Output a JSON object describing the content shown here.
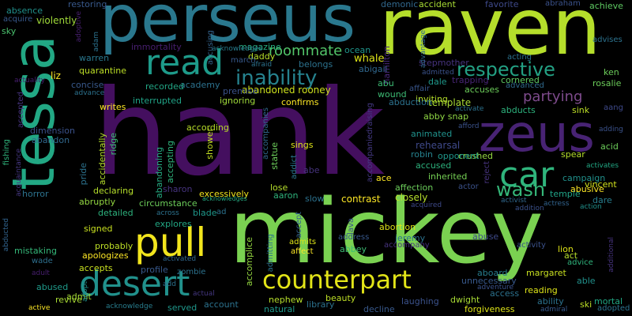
{
  "words": [
    {
      "text": "hank",
      "color": "#440f5f"
    },
    {
      "text": "mickey",
      "color": "#7ad151"
    },
    {
      "text": "perseus",
      "color": "#2a788e"
    },
    {
      "text": "raven",
      "color": "#b5de2b"
    },
    {
      "text": "tessa",
      "color": "#22a884"
    },
    {
      "text": "zeus",
      "color": "#482374"
    },
    {
      "text": "read",
      "color": "#1e9b8a"
    },
    {
      "text": "car",
      "color": "#2fb47c"
    },
    {
      "text": "pull",
      "color": "#f2e51d"
    },
    {
      "text": "desert",
      "color": "#21918c"
    },
    {
      "text": "counterpart",
      "color": "#e2e418"
    },
    {
      "text": "inability",
      "color": "#26828e"
    },
    {
      "text": "respective",
      "color": "#23a083"
    },
    {
      "text": "wash",
      "color": "#35b779"
    },
    {
      "text": "roommate",
      "color": "#52c569"
    },
    {
      "text": "partying",
      "color": "#7e4b8c"
    },
    {
      "text": "abandoned rooney",
      "color": "#cde11d"
    },
    {
      "text": "ignoring",
      "color": "#9fda3a"
    },
    {
      "text": "premise",
      "color": "#3b528b"
    },
    {
      "text": "confirms",
      "color": "#fde725"
    },
    {
      "text": "academy",
      "color": "#2c728e"
    },
    {
      "text": "according",
      "color": "#b8de29"
    },
    {
      "text": "accompanies",
      "color": "#31688e"
    },
    {
      "text": "accompaniedraising",
      "color": "#443983"
    },
    {
      "text": "template",
      "color": "#a8db34"
    },
    {
      "text": "inviting",
      "color": "#b5de2b"
    },
    {
      "text": "abby snap",
      "color": "#8fd744"
    },
    {
      "text": "animated",
      "color": "#20928c"
    },
    {
      "text": "rehearsal",
      "color": "#3e4989"
    },
    {
      "text": "robin",
      "color": "#26828e"
    },
    {
      "text": "accused",
      "color": "#2db27d"
    },
    {
      "text": "inherited",
      "color": "#75d054"
    },
    {
      "text": "crushed",
      "color": "#95d840"
    },
    {
      "text": "opponent",
      "color": "#1f988b"
    },
    {
      "text": "reject",
      "color": "#46337e"
    },
    {
      "text": "ace",
      "color": "#fde725"
    },
    {
      "text": "affection",
      "color": "#6ccd5a"
    },
    {
      "text": "actor",
      "color": "#3b528b"
    },
    {
      "text": "abe",
      "color": "#46337e"
    },
    {
      "text": "sings",
      "color": "#dde318"
    },
    {
      "text": "statue",
      "color": "#6ccd5a"
    },
    {
      "text": "addict",
      "color": "#2a788e"
    },
    {
      "text": "shower",
      "color": "#c2df23"
    },
    {
      "text": "accepting",
      "color": "#2fb47c"
    },
    {
      "text": "abandoning",
      "color": "#25ab82"
    },
    {
      "text": "accidentally",
      "color": "#b5de2b"
    },
    {
      "text": "ridge",
      "color": "#3dbc74"
    },
    {
      "text": "pride",
      "color": "#2c728e"
    },
    {
      "text": "writes",
      "color": "#fde725"
    },
    {
      "text": "interrupted",
      "color": "#20a386"
    },
    {
      "text": "recorded",
      "color": "#22a785"
    },
    {
      "text": "quarantine",
      "color": "#bddf26"
    },
    {
      "text": "concise",
      "color": "#38598c"
    },
    {
      "text": "liz",
      "color": "#fde725"
    },
    {
      "text": "warren",
      "color": "#2a788e"
    },
    {
      "text": "immortality",
      "color": "#481f70"
    },
    {
      "text": "magazine",
      "color": "#28ae80"
    },
    {
      "text": "daddy",
      "color": "#b8de29"
    },
    {
      "text": "march",
      "color": "#38598c"
    },
    {
      "text": "afraid",
      "color": "#2c728e"
    },
    {
      "text": "belongs",
      "color": "#2c728e"
    },
    {
      "text": "acknowledges",
      "color": "#287d8e"
    },
    {
      "text": "whale",
      "color": "#dde318"
    },
    {
      "text": "ocean",
      "color": "#1f968b"
    },
    {
      "text": "abigail",
      "color": "#31688e"
    },
    {
      "text": "hamilton",
      "color": "#482878"
    },
    {
      "text": "abu",
      "color": "#3dbc74"
    },
    {
      "text": "wound",
      "color": "#3dbc74"
    },
    {
      "text": "affair",
      "color": "#39568c"
    },
    {
      "text": "abduction",
      "color": "#2c728e"
    },
    {
      "text": "dale",
      "color": "#1f988b"
    },
    {
      "text": "trapping",
      "color": "#482575"
    },
    {
      "text": "accuses",
      "color": "#6ccd5a"
    },
    {
      "text": "advanced",
      "color": "#306a8e"
    },
    {
      "text": "cornered",
      "color": "#5ec962"
    },
    {
      "text": "rosalie",
      "color": "#6ccd5a"
    },
    {
      "text": "ken",
      "color": "#6ccd5a"
    },
    {
      "text": "stepmother",
      "color": "#46337e"
    },
    {
      "text": "admitted",
      "color": "#3b528b"
    },
    {
      "text": "acting",
      "color": "#2c728e"
    },
    {
      "text": "advises",
      "color": "#2c728e"
    },
    {
      "text": "advantage",
      "color": "#31688e"
    },
    {
      "text": "demonic",
      "color": "#31688e"
    },
    {
      "text": "accident",
      "color": "#a8db34"
    },
    {
      "text": "favorite",
      "color": "#3e4989"
    },
    {
      "text": "abraham",
      "color": "#3b528b"
    },
    {
      "text": "achieve",
      "color": "#5ec962"
    },
    {
      "text": "restoring",
      "color": "#38598c"
    },
    {
      "text": "absence",
      "color": "#21918c"
    },
    {
      "text": "acquire",
      "color": "#38598c"
    },
    {
      "text": "violently",
      "color": "#a0da39"
    },
    {
      "text": "sky",
      "color": "#4ac16d"
    },
    {
      "text": "adam",
      "color": "#2c728e"
    },
    {
      "text": "adoptive",
      "color": "#481f70"
    },
    {
      "text": "accusing",
      "color": "#33638d"
    },
    {
      "text": "actuality",
      "color": "#481f70"
    },
    {
      "text": "advance",
      "color": "#2c728e"
    },
    {
      "text": "accepted",
      "color": "#46337e"
    },
    {
      "text": "dimension",
      "color": "#3b528b"
    },
    {
      "text": "abandon",
      "color": "#31688e"
    },
    {
      "text": "fishing",
      "color": "#2fb47c"
    },
    {
      "text": "acquaintance",
      "color": "#453781"
    },
    {
      "text": "horror",
      "color": "#2c728e"
    },
    {
      "text": "declaring",
      "color": "#b5de2b"
    },
    {
      "text": "abruptly",
      "color": "#93d741"
    },
    {
      "text": "detailed",
      "color": "#2db27d"
    },
    {
      "text": "signed",
      "color": "#c8e020"
    },
    {
      "text": "probably",
      "color": "#bddf26"
    },
    {
      "text": "apologizes",
      "color": "#fde725"
    },
    {
      "text": "mistaking",
      "color": "#35b779"
    },
    {
      "text": "abducted",
      "color": "#32648e"
    },
    {
      "text": "wade",
      "color": "#2e6f8e"
    },
    {
      "text": "adult",
      "color": "#481f70"
    },
    {
      "text": "accepts",
      "color": "#c8e020"
    },
    {
      "text": "abused",
      "color": "#1f9a8a"
    },
    {
      "text": "admit",
      "color": "#a5db36"
    },
    {
      "text": "revive",
      "color": "#a8db34"
    },
    {
      "text": "active",
      "color": "#fde725"
    },
    {
      "text": "acknowledge",
      "color": "#287d8e"
    },
    {
      "text": "served",
      "color": "#1f988b"
    },
    {
      "text": "account",
      "color": "#2c728e"
    },
    {
      "text": "profile",
      "color": "#38598c"
    },
    {
      "text": "zombie",
      "color": "#2c728e"
    },
    {
      "text": "activated",
      "color": "#31688e"
    },
    {
      "text": "add",
      "color": "#2c728e"
    },
    {
      "text": "adopt",
      "color": "#21918c"
    },
    {
      "text": "explores",
      "color": "#22a884"
    },
    {
      "text": "circumstance",
      "color": "#6ccd5a"
    },
    {
      "text": "sharon",
      "color": "#46337e"
    },
    {
      "text": "excessively",
      "color": "#f1e51d"
    },
    {
      "text": "acknowledges",
      "color": "#25ab82"
    },
    {
      "text": "blade",
      "color": "#1f988b"
    },
    {
      "text": "ad",
      "color": "#2c728e"
    },
    {
      "text": "across",
      "color": "#2c728e"
    },
    {
      "text": "actual",
      "color": "#453781"
    },
    {
      "text": "accomplice",
      "color": "#95d840"
    },
    {
      "text": "admitting",
      "color": "#2c728e"
    },
    {
      "text": "affect",
      "color": "#fde725"
    },
    {
      "text": "admits",
      "color": "#dde318"
    },
    {
      "text": "aaron",
      "color": "#2fb47c"
    },
    {
      "text": "lose",
      "color": "#b5de2b"
    },
    {
      "text": "slow",
      "color": "#2c728e"
    },
    {
      "text": "accept",
      "color": "#33638d"
    },
    {
      "text": "contrast",
      "color": "#fde725"
    },
    {
      "text": "lava",
      "color": "#3b528b"
    },
    {
      "text": "abortion",
      "color": "#dde318"
    },
    {
      "text": "address",
      "color": "#38598c"
    },
    {
      "text": "closely",
      "color": "#b5de2b"
    },
    {
      "text": "jeremy",
      "color": "#2c728e"
    },
    {
      "text": "accompany",
      "color": "#46337e"
    },
    {
      "text": "abbey",
      "color": "#3dbc74"
    },
    {
      "text": "abuse",
      "color": "#3e4989"
    },
    {
      "text": "aboard",
      "color": "#287d8e"
    },
    {
      "text": "unnecessary",
      "color": "#38598c"
    },
    {
      "text": "adventure",
      "color": "#3b528b"
    },
    {
      "text": "margaret",
      "color": "#c8e020"
    },
    {
      "text": "access",
      "color": "#2c728e"
    },
    {
      "text": "activity",
      "color": "#3b528b"
    },
    {
      "text": "lion",
      "color": "#dde318"
    },
    {
      "text": "act",
      "color": "#b5de2b"
    },
    {
      "text": "advice",
      "color": "#2fb47c"
    },
    {
      "text": "reading",
      "color": "#dde318"
    },
    {
      "text": "ability",
      "color": "#2c728e"
    },
    {
      "text": "able",
      "color": "#21918c"
    },
    {
      "text": "mortal",
      "color": "#22a884"
    },
    {
      "text": "ski",
      "color": "#bddf26"
    },
    {
      "text": "adopted",
      "color": "#2c728e"
    },
    {
      "text": "admiral",
      "color": "#38598c"
    },
    {
      "text": "additional",
      "color": "#46337e"
    },
    {
      "text": "nephew",
      "color": "#b5de2b"
    },
    {
      "text": "beauty",
      "color": "#bddf26"
    },
    {
      "text": "library",
      "color": "#2c728e"
    },
    {
      "text": "natural",
      "color": "#1f988b"
    },
    {
      "text": "decline",
      "color": "#38598c"
    },
    {
      "text": "laughing",
      "color": "#3b528b"
    },
    {
      "text": "dwight",
      "color": "#a8db34"
    },
    {
      "text": "forgiveness",
      "color": "#dde318"
    },
    {
      "text": "abusive",
      "color": "#fde725"
    },
    {
      "text": "temple",
      "color": "#20a386"
    },
    {
      "text": "dare",
      "color": "#287d8e"
    },
    {
      "text": "action",
      "color": "#21918c"
    },
    {
      "text": "actress",
      "color": "#32648e"
    },
    {
      "text": "vincent",
      "color": "#d0e11c"
    },
    {
      "text": "campaign",
      "color": "#21918c"
    },
    {
      "text": "activates",
      "color": "#22a884"
    },
    {
      "text": "spear",
      "color": "#b5de2b"
    },
    {
      "text": "acid",
      "color": "#6ccd5a"
    },
    {
      "text": "adding",
      "color": "#3b528b"
    },
    {
      "text": "sink",
      "color": "#bddf26"
    },
    {
      "text": "aang",
      "color": "#3e4989"
    },
    {
      "text": "abducts",
      "color": "#2db27d"
    },
    {
      "text": "activate",
      "color": "#2c728e"
    },
    {
      "text": "afford",
      "color": "#3b528b"
    },
    {
      "text": "acquired",
      "color": "#3e4989"
    },
    {
      "text": "activist",
      "color": "#31688e"
    },
    {
      "text": "addition",
      "color": "#3b528b"
    }
  ]
}
